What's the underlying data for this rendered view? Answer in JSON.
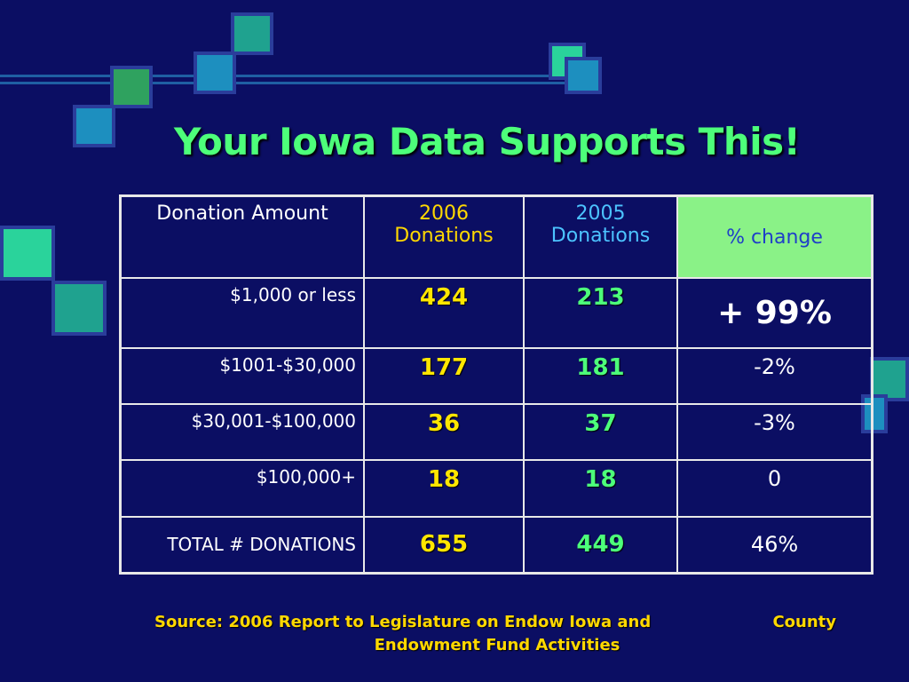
{
  "title": "Your Iowa Data Supports This!",
  "table": {
    "headers": {
      "amount": "Donation Amount",
      "y2006": "2006 Donations",
      "y2005": "2005 Donations",
      "pct": "% change"
    },
    "rows": [
      {
        "amount": "$1,000 or less",
        "y2006": "424",
        "y2005": "213",
        "pct": "+ 99%"
      },
      {
        "amount": "$1001-$30,000",
        "y2006": "177",
        "y2005": "181",
        "pct": "-2%"
      },
      {
        "amount": "$30,001-$100,000",
        "y2006": "36",
        "y2005": "37",
        "pct": "-3%"
      },
      {
        "amount": "$100,000+",
        "y2006": "18",
        "y2005": "18",
        "pct": "0"
      },
      {
        "amount": "TOTAL # DONATIONS",
        "y2006": "655",
        "y2005": "449",
        "pct": "46%"
      }
    ]
  },
  "source": {
    "line1_left": "Source:  2006 Report to Legislature on Endow Iowa and",
    "line1_right": "County",
    "line2": "Endowment Fund Activities"
  },
  "colors": {
    "background": "#0b0e63",
    "title": "#4dff7a",
    "y2006": "#ffe600",
    "y2005": "#4dff7a",
    "pct_header_bg": "#8af287"
  }
}
